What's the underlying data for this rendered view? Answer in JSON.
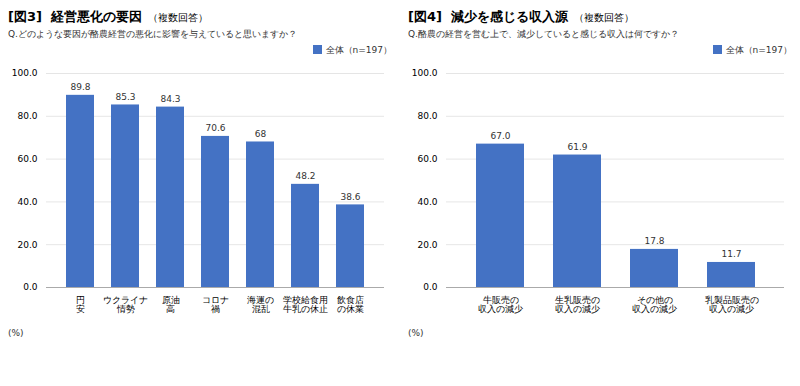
{
  "chart_data": [
    {
      "type": "bar",
      "title": "[図3]  経営悪化の要因",
      "annotations": [
        "（複数回答）"
      ],
      "subtitle": "Q.どのような要因が酪農経営の悪化に影響を与えていると思いますか？",
      "ylabel": "(%)",
      "categories": [
        "円\n安",
        "ウクライナ\n情勢",
        "原油\n高",
        "コロナ\n禍",
        "海運の\n混乱",
        "学校給食用\n牛乳の休止",
        "飲食店\nの休業"
      ],
      "series": [
        {
          "name": "全体（n=197）",
          "color": "#4472C4",
          "values": [
            89.8,
            85.3,
            84.3,
            70.6,
            68.0,
            48.2,
            38.6
          ]
        }
      ],
      "ylim": [
        0,
        100
      ],
      "yticks": [
        {
          "value": 0,
          "label": "0.0"
        },
        {
          "value": 20,
          "label": "20.0"
        },
        {
          "value": 40,
          "label": "40.0"
        },
        {
          "value": 60,
          "label": "60.0"
        },
        {
          "value": 80,
          "label": "80.0"
        },
        {
          "value": 100,
          "label": "100.0"
        }
      ],
      "grid": true,
      "legend": "upper right",
      "data_labels": true
    },
    {
      "type": "bar",
      "title": "[図4]  減少を感じる収入源",
      "annotations": [
        "（複数回答）"
      ],
      "subtitle": "Q.酪農の経営を営む上で、減少していると感じる収入は何ですか？",
      "ylabel": "(%)",
      "categories": [
        "牛販売の\n収入の減少",
        "生乳販売の\n収入の減少",
        "その他の\n収入の減少",
        "乳製品販売の\n収入の減少"
      ],
      "series": [
        {
          "name": "全体（n=197）",
          "color": "#4472C4",
          "values": [
            67.0,
            61.9,
            17.8,
            11.7
          ],
          "value_labels": [
            "67.0",
            "61.9",
            "17.8",
            "11.7"
          ]
        }
      ],
      "ylim": [
        0,
        100
      ],
      "yticks": [
        {
          "value": 0,
          "label": "0.0"
        },
        {
          "value": 20,
          "label": "20.0"
        },
        {
          "value": 40,
          "label": "40.0"
        },
        {
          "value": 60,
          "label": "60.0"
        },
        {
          "value": 80,
          "label": "80.0"
        },
        {
          "value": 100,
          "label": "100.0"
        }
      ],
      "grid": true,
      "legend": "upper right",
      "data_labels": true
    }
  ]
}
